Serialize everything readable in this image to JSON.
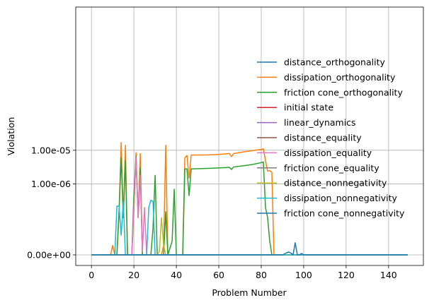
{
  "chart_data": {
    "type": "line",
    "title": "",
    "xlabel": "Problem Number",
    "ylabel": "Violation",
    "x_ticks": [
      0,
      20,
      40,
      60,
      80,
      100,
      120,
      140
    ],
    "x_tick_labels": [
      "0",
      "20",
      "40",
      "60",
      "80",
      "100",
      "120",
      "140"
    ],
    "xlim": [
      -7.4,
      156.4
    ],
    "y_scale": "symlog",
    "y_ticks": [
      0,
      1e-06,
      1e-05
    ],
    "y_tick_labels": [
      "0.00e+00",
      "1.00e-06",
      "1.00e-05"
    ],
    "grid": true,
    "legend_position": "right",
    "series": [
      {
        "name": "distance_orthogonality",
        "color": "#1f77b4",
        "points": [
          [
            0,
            0
          ],
          [
            149,
            0
          ]
        ]
      },
      {
        "name": "dissipation_orthogonality",
        "color": "#ff7f0e",
        "points": [
          [
            0,
            0
          ],
          [
            9,
            0
          ],
          [
            10,
            1.5e-08
          ],
          [
            11,
            0
          ],
          [
            12,
            0
          ],
          [
            13,
            1.5e-07
          ],
          [
            14,
            1.7e-05
          ],
          [
            15,
            1e-07
          ],
          [
            16,
            1.4e-05
          ],
          [
            17,
            0
          ],
          [
            19,
            0
          ],
          [
            20,
            1.5e-07
          ],
          [
            21,
            8.5e-06
          ],
          [
            22,
            1e-07
          ],
          [
            23,
            8e-06
          ],
          [
            24,
            0
          ],
          [
            33,
            0
          ],
          [
            34,
            1.5e-08
          ],
          [
            35,
            1.4e-05
          ],
          [
            36,
            0
          ],
          [
            43,
            0
          ],
          [
            44,
            6e-06
          ],
          [
            45,
            7e-06
          ],
          [
            46,
            1.5e-06
          ],
          [
            47,
            7.2e-06
          ],
          [
            55,
            7.3e-06
          ],
          [
            60,
            7.5e-06
          ],
          [
            65,
            8e-06
          ],
          [
            66,
            6.5e-06
          ],
          [
            67,
            8e-06
          ],
          [
            72,
            9e-06
          ],
          [
            76,
            9.8e-06
          ],
          [
            80,
            1.06e-05
          ],
          [
            81,
            1.1e-05
          ],
          [
            82,
            5e-06
          ],
          [
            83,
            2.4e-06
          ],
          [
            84,
            2.5e-06
          ],
          [
            85,
            2.2e-06
          ],
          [
            86,
            0
          ],
          [
            149,
            0
          ]
        ]
      },
      {
        "name": "friction cone_orthogonality",
        "color": "#2ca02c",
        "points": [
          [
            0,
            0
          ],
          [
            12,
            0
          ],
          [
            13,
            1.5e-07
          ],
          [
            14,
            6e-06
          ],
          [
            15,
            1e-07
          ],
          [
            16,
            5e-06
          ],
          [
            17,
            0
          ],
          [
            19,
            0
          ],
          [
            20,
            5e-07
          ],
          [
            21,
            6.5e-06
          ],
          [
            22,
            1e-07
          ],
          [
            23,
            3e-06
          ],
          [
            24,
            0
          ],
          [
            28,
            0
          ],
          [
            29,
            5e-08
          ],
          [
            30,
            1.8e-06
          ],
          [
            31,
            0
          ],
          [
            34,
            0
          ],
          [
            35,
            1.5e-07
          ],
          [
            36,
            0
          ],
          [
            38,
            2e-08
          ],
          [
            39,
            7e-07
          ],
          [
            40,
            0
          ],
          [
            43,
            0
          ],
          [
            44,
            2.8e-06
          ],
          [
            45,
            2.8e-06
          ],
          [
            46,
            4.5e-07
          ],
          [
            47,
            2.8e-06
          ],
          [
            55,
            2.9e-06
          ],
          [
            65,
            3.1e-06
          ],
          [
            66,
            2.7e-06
          ],
          [
            67,
            3.2e-06
          ],
          [
            72,
            3.5e-06
          ],
          [
            76,
            3.8e-06
          ],
          [
            80,
            4.3e-06
          ],
          [
            81,
            4.5e-06
          ],
          [
            82,
            2e-07
          ],
          [
            83,
            1e-07
          ],
          [
            84,
            2e-08
          ],
          [
            85,
            0
          ],
          [
            149,
            0
          ]
        ]
      },
      {
        "name": "initial state",
        "color": "#d62728",
        "points": [
          [
            0,
            0
          ],
          [
            149,
            0
          ]
        ]
      },
      {
        "name": "linear_dynamics",
        "color": "#9467bd",
        "points": [
          [
            0,
            0
          ],
          [
            149,
            0
          ]
        ]
      },
      {
        "name": "distance_equality",
        "color": "#8c564b",
        "points": [
          [
            0,
            0
          ],
          [
            149,
            0
          ]
        ]
      },
      {
        "name": "dissipation_equality",
        "color": "#e377c2",
        "points": [
          [
            0,
            0
          ],
          [
            19,
            0
          ],
          [
            20,
            2e-07
          ],
          [
            21,
            6e-06
          ],
          [
            22,
            1e-07
          ],
          [
            23,
            1.8e-06
          ],
          [
            24,
            1e-08
          ],
          [
            25,
            2e-07
          ],
          [
            26,
            0
          ],
          [
            149,
            0
          ]
        ]
      },
      {
        "name": "friction cone_equality",
        "color": "#7f7f7f",
        "points": [
          [
            0,
            0
          ],
          [
            149,
            0
          ]
        ]
      },
      {
        "name": "distance_nonnegativity",
        "color": "#bcbd22",
        "points": [
          [
            0,
            0
          ],
          [
            31,
            0
          ],
          [
            32,
            1e-08
          ],
          [
            33,
            1e-07
          ],
          [
            34,
            1.5e-08
          ],
          [
            35,
            0
          ],
          [
            149,
            0
          ]
        ]
      },
      {
        "name": "dissipation_nonnegativity",
        "color": "#17becf",
        "points": [
          [
            0,
            0
          ],
          [
            11,
            0
          ],
          [
            12,
            2.2e-07
          ],
          [
            13,
            2.2e-07
          ],
          [
            14,
            3e-08
          ],
          [
            15,
            3e-07
          ],
          [
            16,
            0
          ],
          [
            26,
            0
          ],
          [
            27,
            2e-07
          ],
          [
            28,
            3.3e-07
          ],
          [
            29,
            3e-07
          ],
          [
            30,
            0
          ],
          [
            149,
            0
          ]
        ]
      },
      {
        "name": "friction cone_nonnegativity",
        "color": "#1f77b4",
        "points": [
          [
            0,
            0
          ],
          [
            90,
            0
          ],
          [
            92,
            6e-09
          ],
          [
            93,
            8e-09
          ],
          [
            94,
            5e-09
          ],
          [
            95,
            0
          ],
          [
            96,
            1.8e-08
          ],
          [
            97,
            0
          ],
          [
            98,
            0
          ],
          [
            99,
            4e-09
          ],
          [
            100,
            0
          ],
          [
            149,
            0
          ]
        ]
      }
    ]
  }
}
